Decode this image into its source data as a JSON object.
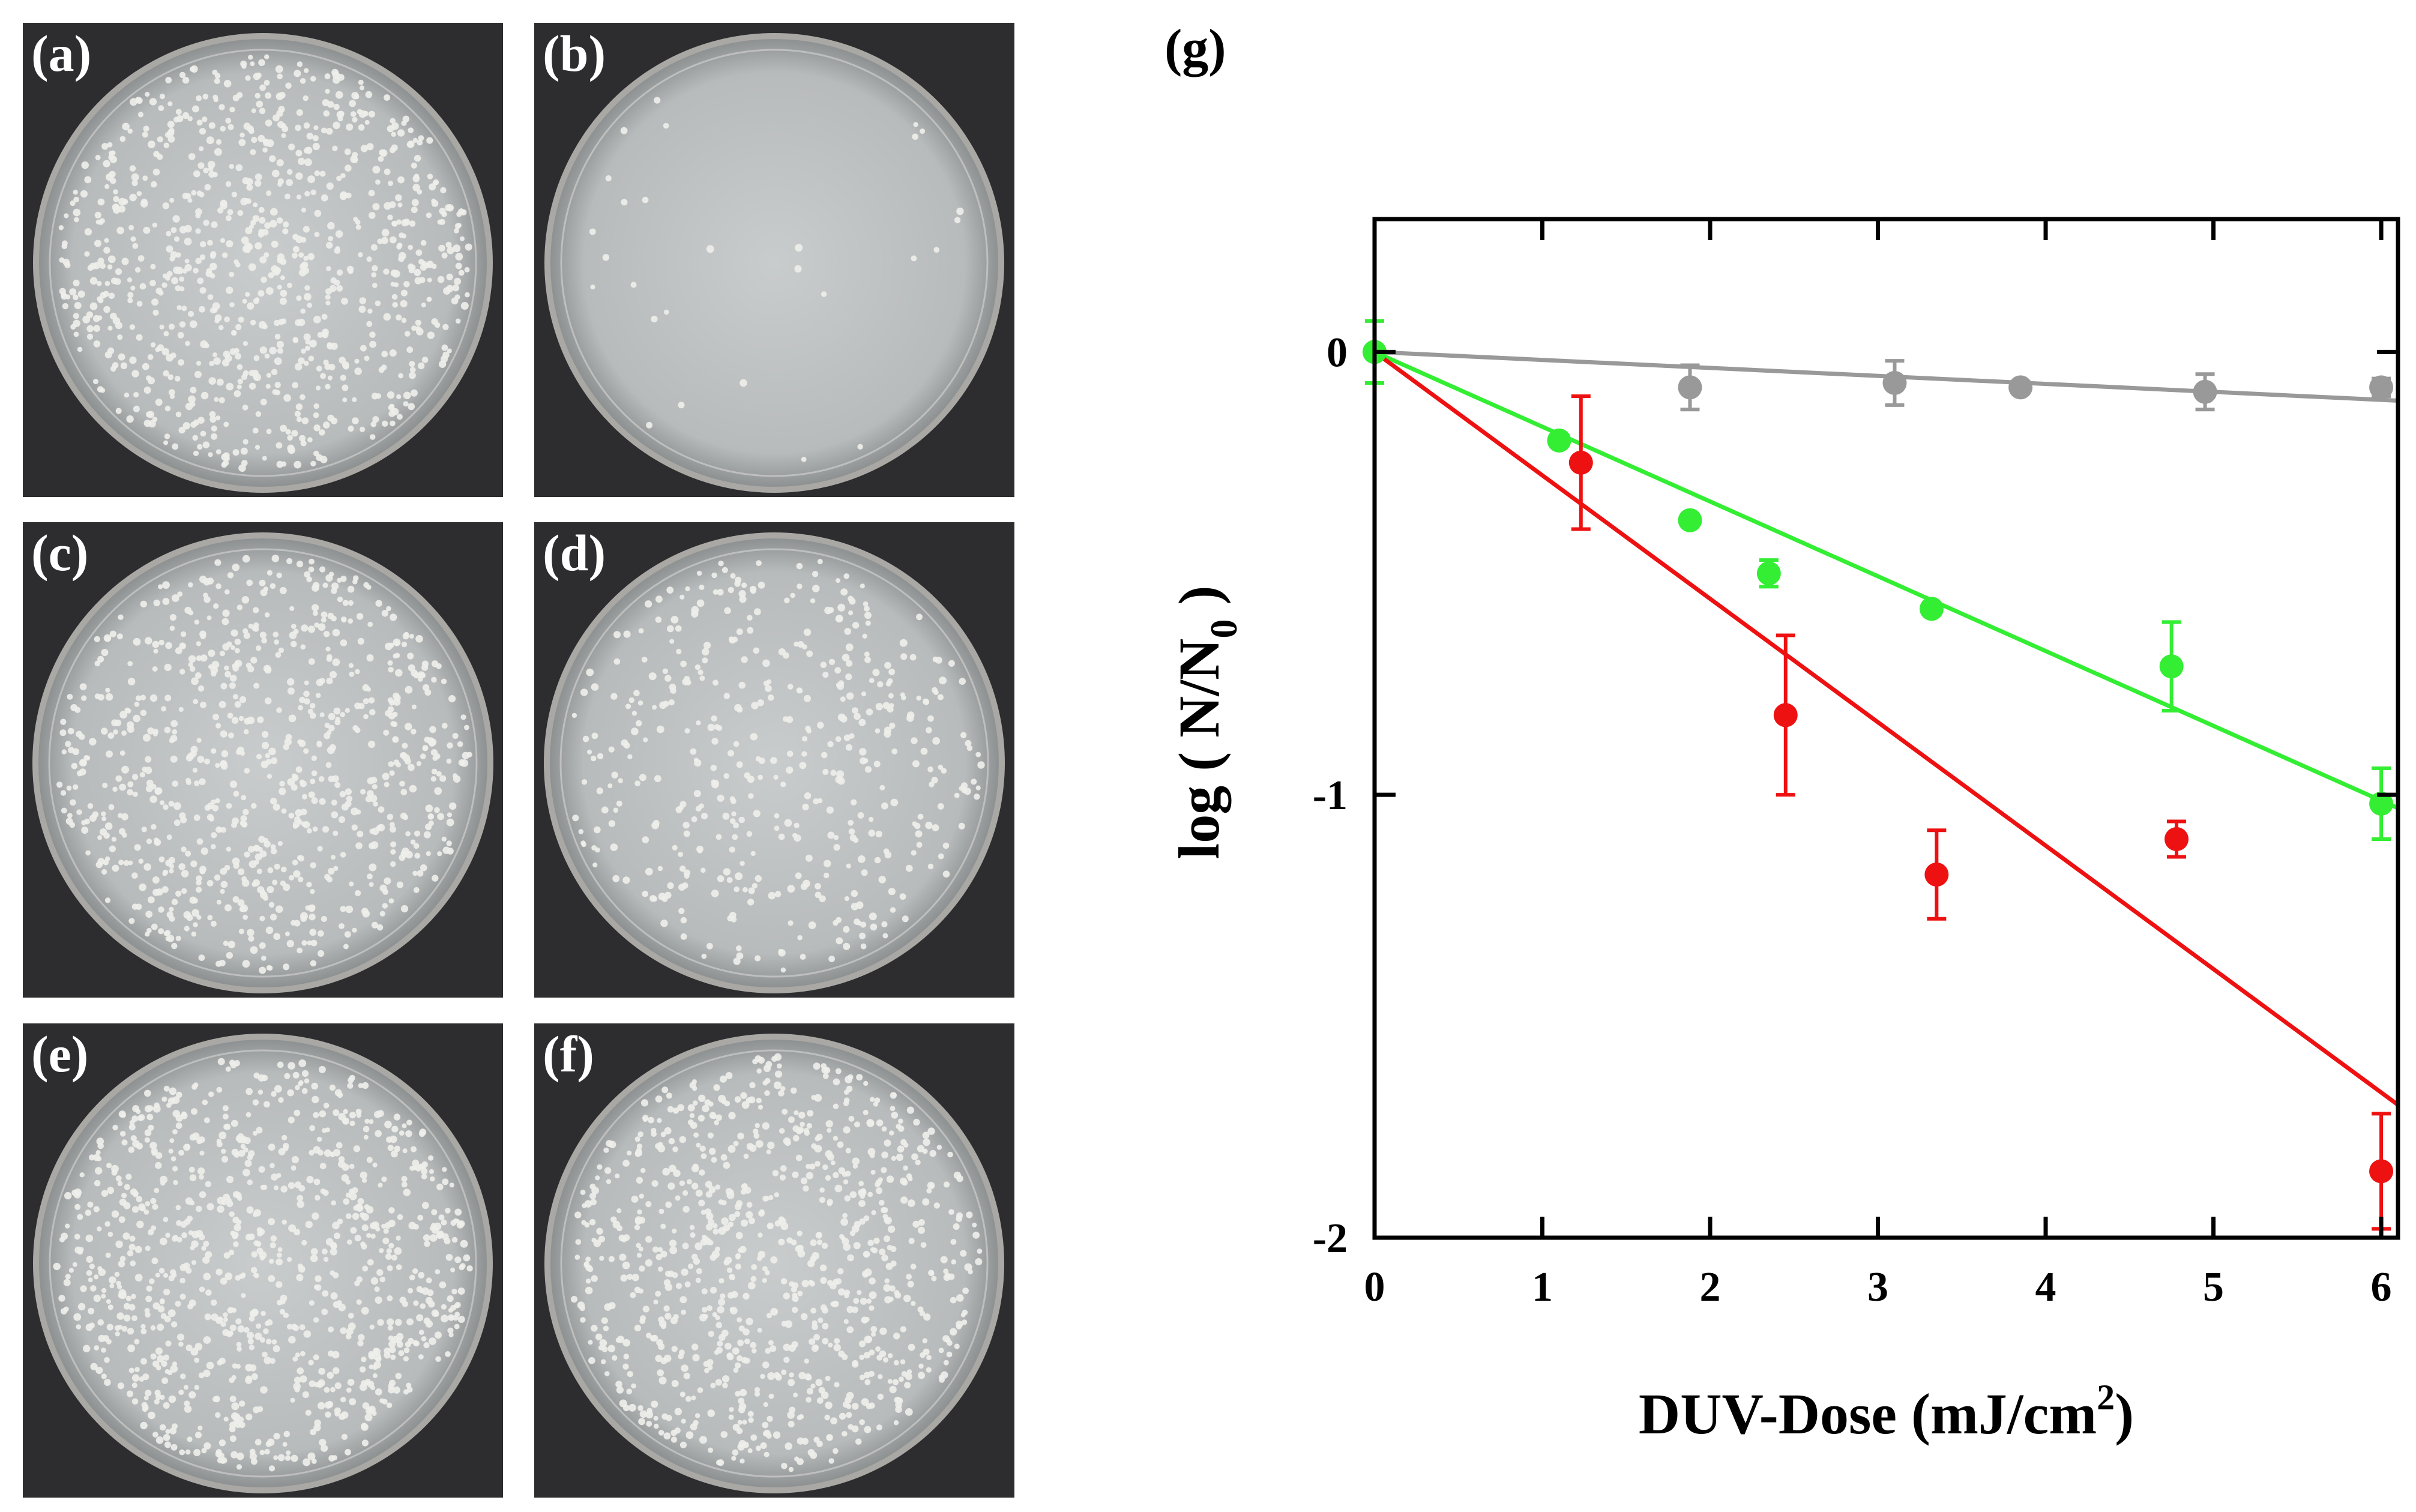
{
  "panels": [
    {
      "label": "(a)",
      "colony_count": 900
    },
    {
      "label": "(b)",
      "colony_count": 28
    },
    {
      "label": "(c)",
      "colony_count": 820
    },
    {
      "label": "(d)",
      "colony_count": 460
    },
    {
      "label": "(e)",
      "colony_count": 960
    },
    {
      "label": "(f)",
      "colony_count": 900
    }
  ],
  "chart_label": "(g)",
  "chart_data": {
    "type": "scatter",
    "title": "",
    "xlabel": "DUV-Dose (mJ/cm",
    "xlabel_sup": "2",
    "xlabel_end": ")",
    "ylabel": "log ( N/N",
    "ylabel_sub": "0",
    "ylabel_end": " )",
    "xlim": [
      0,
      6.1
    ],
    "ylim": [
      -2,
      0.3
    ],
    "xticks": [
      0,
      1,
      2,
      3,
      4,
      5,
      6
    ],
    "xtick_labels": [
      "0",
      "1",
      "2",
      "3",
      "4",
      "5",
      "6"
    ],
    "yticks": [
      0,
      -1,
      -2
    ],
    "ytick_labels": [
      "0",
      "-1",
      "-2"
    ],
    "series": [
      {
        "name": "gray",
        "color": "#999999",
        "x": [
          0,
          1.88,
          3.1,
          3.85,
          4.95,
          6.0
        ],
        "y": [
          0,
          -0.08,
          -0.07,
          -0.08,
          -0.09,
          -0.08
        ],
        "err": [
          0.07,
          0.05,
          0.05,
          0.0,
          0.04,
          0.02
        ],
        "fit": {
          "x": [
            0,
            6.1
          ],
          "y": [
            0,
            -0.11
          ]
        }
      },
      {
        "name": "green",
        "color": "#33ee33",
        "x": [
          0,
          1.1,
          1.88,
          2.35,
          3.32,
          4.75,
          6.0
        ],
        "y": [
          0,
          -0.2,
          -0.38,
          -0.5,
          -0.58,
          -0.71,
          -1.02
        ],
        "err": [
          0.07,
          0.0,
          0.0,
          0.03,
          0.0,
          0.1,
          0.08
        ],
        "fit": {
          "x": [
            0,
            6.1
          ],
          "y": [
            0,
            -1.03
          ]
        }
      },
      {
        "name": "red",
        "color": "#ee1111",
        "x": [
          1.23,
          2.45,
          3.35,
          4.78,
          6.0
        ],
        "y": [
          -0.25,
          -0.82,
          -1.18,
          -1.1,
          -1.85
        ],
        "err": [
          0.15,
          0.18,
          0.1,
          0.04,
          0.13
        ],
        "fit": {
          "x": [
            0,
            6.1
          ],
          "y": [
            0,
            -1.7
          ]
        }
      }
    ]
  }
}
